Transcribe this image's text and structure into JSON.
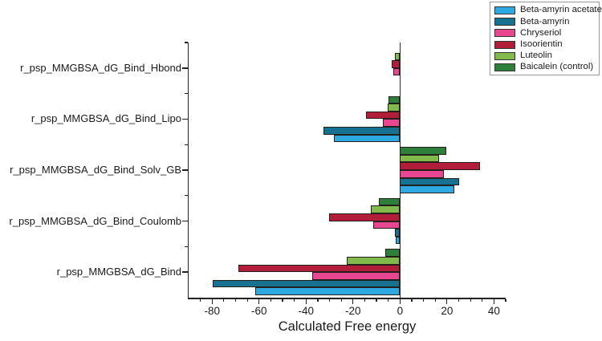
{
  "chart_data": {
    "type": "bar",
    "orientation": "horizontal",
    "title": "",
    "xlabel": "Calculated Free energy",
    "xlim": [
      -90,
      45
    ],
    "x_major_ticks": [
      -80,
      -60,
      -40,
      -20,
      0,
      20,
      40
    ],
    "x_minor_step": 5,
    "grid": false,
    "legend_position": "top-right",
    "categories": [
      "r_psp_MMGBSA_dG_Bind_Hbond",
      "r_psp_MMGBSA_dG_Bind_Lipo",
      "r_psp_MMGBSA_dG_Bind_Solv_GB",
      "r_psp_MMGBSA_dG_Bind_Coulomb",
      "r_psp_MMGBSA_dG_Bind"
    ],
    "series": [
      {
        "name": "Beta-amyrin acetate",
        "color": "#2FA9E1",
        "values": [
          0,
          -28.2,
          23.2,
          -1.8,
          -61.7
        ]
      },
      {
        "name": "Beta-amyrin",
        "color": "#177191",
        "values": [
          0,
          -32.5,
          25.2,
          -2.2,
          -79.9
        ]
      },
      {
        "name": "Chryseriol",
        "color": "#E84690",
        "values": [
          -2.7,
          -7.4,
          18.7,
          -11.5,
          -37.4
        ]
      },
      {
        "name": "Isoorientin",
        "color": "#B21E39",
        "values": [
          -3.4,
          -14.3,
          34.0,
          -30.3,
          -68.8
        ]
      },
      {
        "name": "Luteolin",
        "color": "#82BA4C",
        "values": [
          -2.1,
          -5.1,
          16.7,
          -12.3,
          -22.6
        ]
      },
      {
        "name": "Baicalein (control)",
        "color": "#2E7F39",
        "values": [
          0,
          -4.9,
          19.8,
          -9.1,
          -6.3
        ]
      }
    ],
    "row_order_top_to_bottom": [
      "Baicalein (control)",
      "Luteolin",
      "Isoorientin",
      "Chryseriol",
      "Beta-amyrin",
      "Beta-amyrin acetate"
    ],
    "bar_border_color": "#23201c",
    "axis_color": "#222222"
  }
}
